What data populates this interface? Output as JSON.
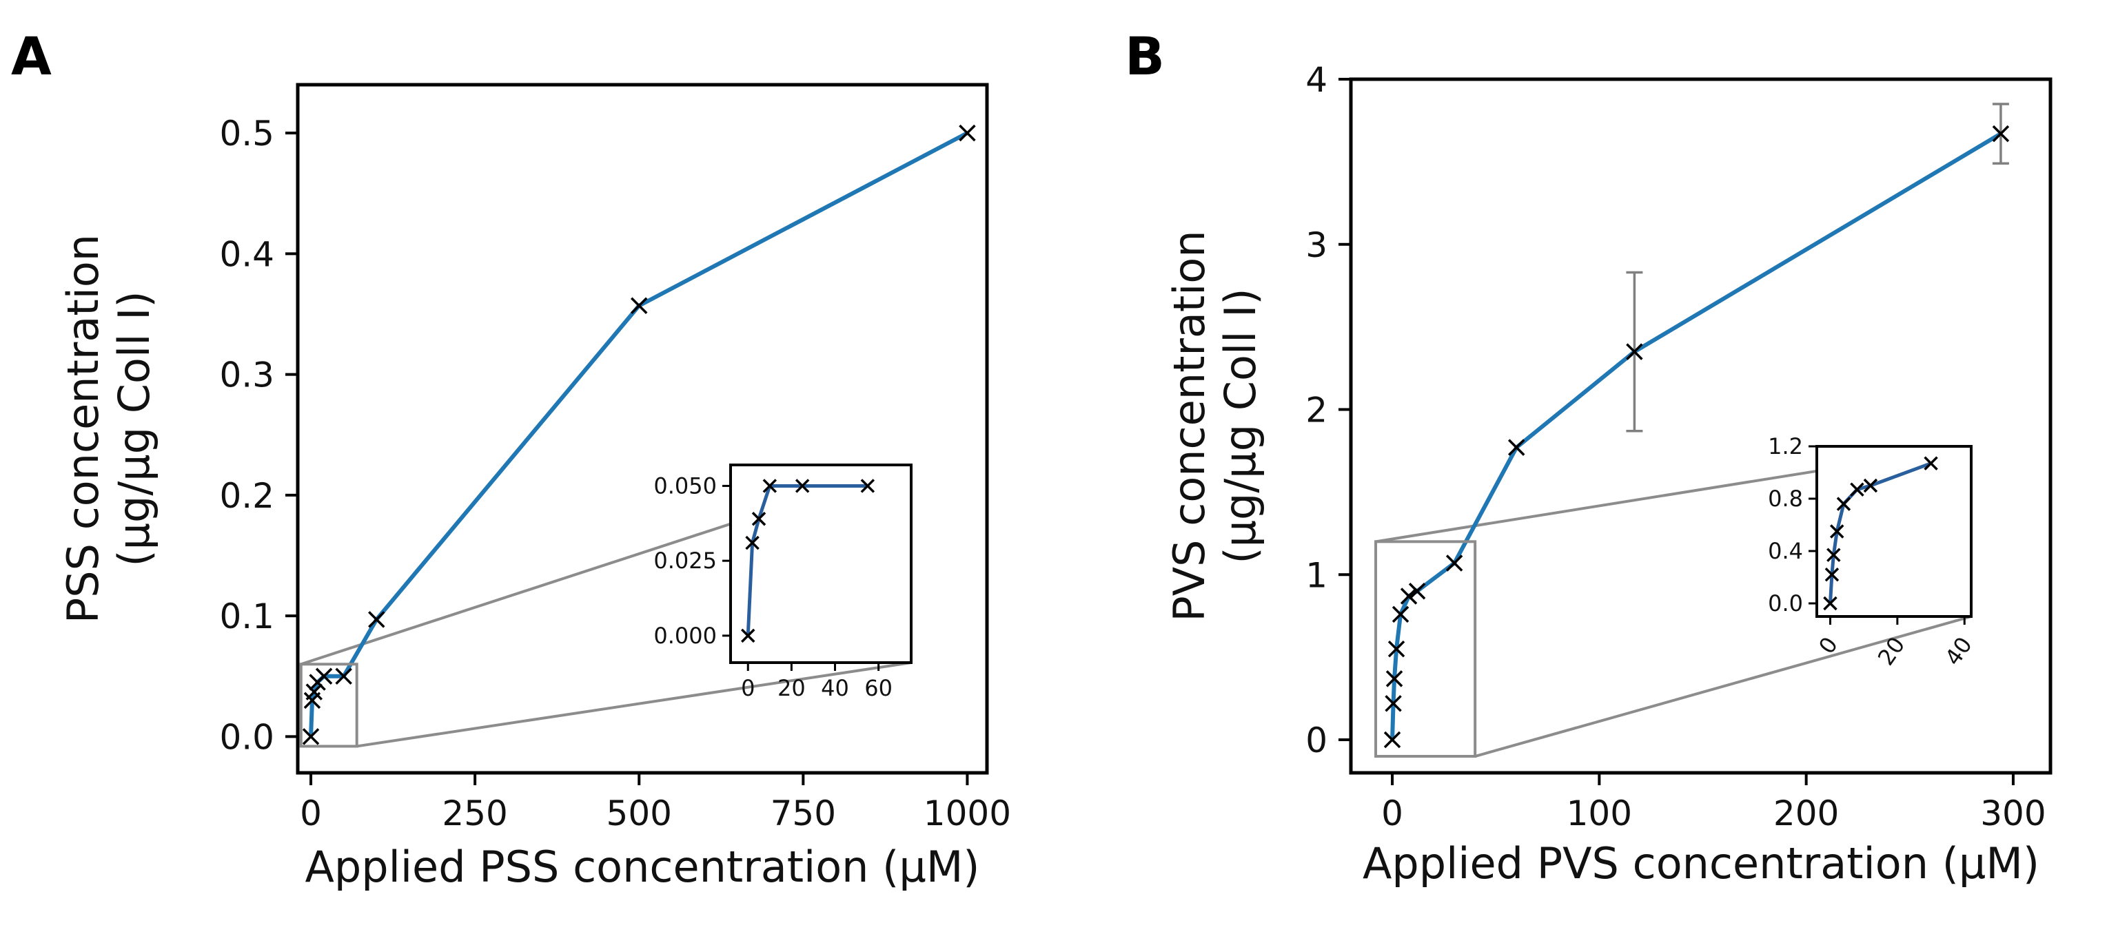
{
  "chart_data": [
    {
      "panel": "A",
      "type": "line",
      "xlabel": "Applied PSS concentration (µM)",
      "ylabel_lines": [
        "PSS concentration",
        "(µg/µg Coll I)"
      ],
      "xlim": [
        -20,
        1030
      ],
      "ylim": [
        -0.03,
        0.54
      ],
      "xticks": [
        0,
        250,
        500,
        750,
        1000
      ],
      "xtick_labels": [
        "0",
        "250",
        "500",
        "750",
        "1000"
      ],
      "yticks": [
        0.0,
        0.1,
        0.2,
        0.3,
        0.4,
        0.5
      ],
      "ytick_labels": [
        "0.0",
        "0.1",
        "0.2",
        "0.3",
        "0.4",
        "0.5"
      ],
      "series": [
        {
          "x": [
            0,
            2,
            5,
            10,
            20,
            50,
            100,
            500,
            1000
          ],
          "y": [
            0.0,
            0.03,
            0.037,
            0.045,
            0.05,
            0.05,
            0.097,
            0.357,
            0.5
          ]
        }
      ],
      "zoom_box": {
        "x": [
          -15,
          70
        ],
        "y": [
          -0.008,
          0.06
        ]
      },
      "inset": {
        "xlim": [
          -8,
          75
        ],
        "ylim": [
          -0.009,
          0.057
        ],
        "xticks": [
          0,
          20,
          40,
          60
        ],
        "xtick_labels": [
          "0",
          "20",
          "40",
          "60"
        ],
        "yticks": [
          0.0,
          0.025,
          0.05
        ],
        "ytick_labels": [
          "0.000",
          "0.025",
          "0.050"
        ],
        "x": [
          0,
          2,
          5,
          10,
          25,
          55
        ],
        "y": [
          0.0,
          0.031,
          0.039,
          0.05,
          0.05,
          0.05
        ]
      }
    },
    {
      "panel": "B",
      "type": "line",
      "xlabel": "Applied PVS concentration (µM)",
      "ylabel_lines": [
        "PVS concentration",
        "(µg/µg Coll I)"
      ],
      "xlim": [
        -20,
        318
      ],
      "ylim": [
        -0.2,
        4.0
      ],
      "xticks": [
        0,
        100,
        200,
        300
      ],
      "xtick_labels": [
        "0",
        "100",
        "200",
        "300"
      ],
      "yticks": [
        0,
        1,
        2,
        3,
        4
      ],
      "ytick_labels": [
        "0",
        "1",
        "2",
        "3",
        "4"
      ],
      "series": [
        {
          "x": [
            0,
            0.5,
            1,
            2,
            4,
            8,
            12,
            30,
            60,
            117,
            294
          ],
          "y": [
            0.0,
            0.22,
            0.37,
            0.55,
            0.76,
            0.87,
            0.9,
            1.07,
            1.77,
            2.35,
            3.67
          ],
          "error": [
            0,
            0,
            0,
            0,
            0,
            0,
            0,
            0,
            0,
            0.48,
            0.18
          ]
        }
      ],
      "zoom_box": {
        "x": [
          -8,
          40
        ],
        "y": [
          -0.1,
          1.2
        ]
      },
      "inset": {
        "xlim": [
          -4,
          42
        ],
        "ylim": [
          -0.1,
          1.2
        ],
        "xticks": [
          0,
          20,
          40
        ],
        "xtick_labels": [
          "0",
          "20",
          "40"
        ],
        "yticks": [
          0.0,
          0.4,
          0.8,
          1.2
        ],
        "ytick_labels": [
          "0.0",
          "0.4",
          "0.8",
          "1.2"
        ],
        "x": [
          0,
          0.5,
          1,
          2,
          4,
          8,
          12,
          30
        ],
        "y": [
          0.0,
          0.22,
          0.37,
          0.55,
          0.76,
          0.87,
          0.9,
          1.07
        ]
      }
    }
  ]
}
